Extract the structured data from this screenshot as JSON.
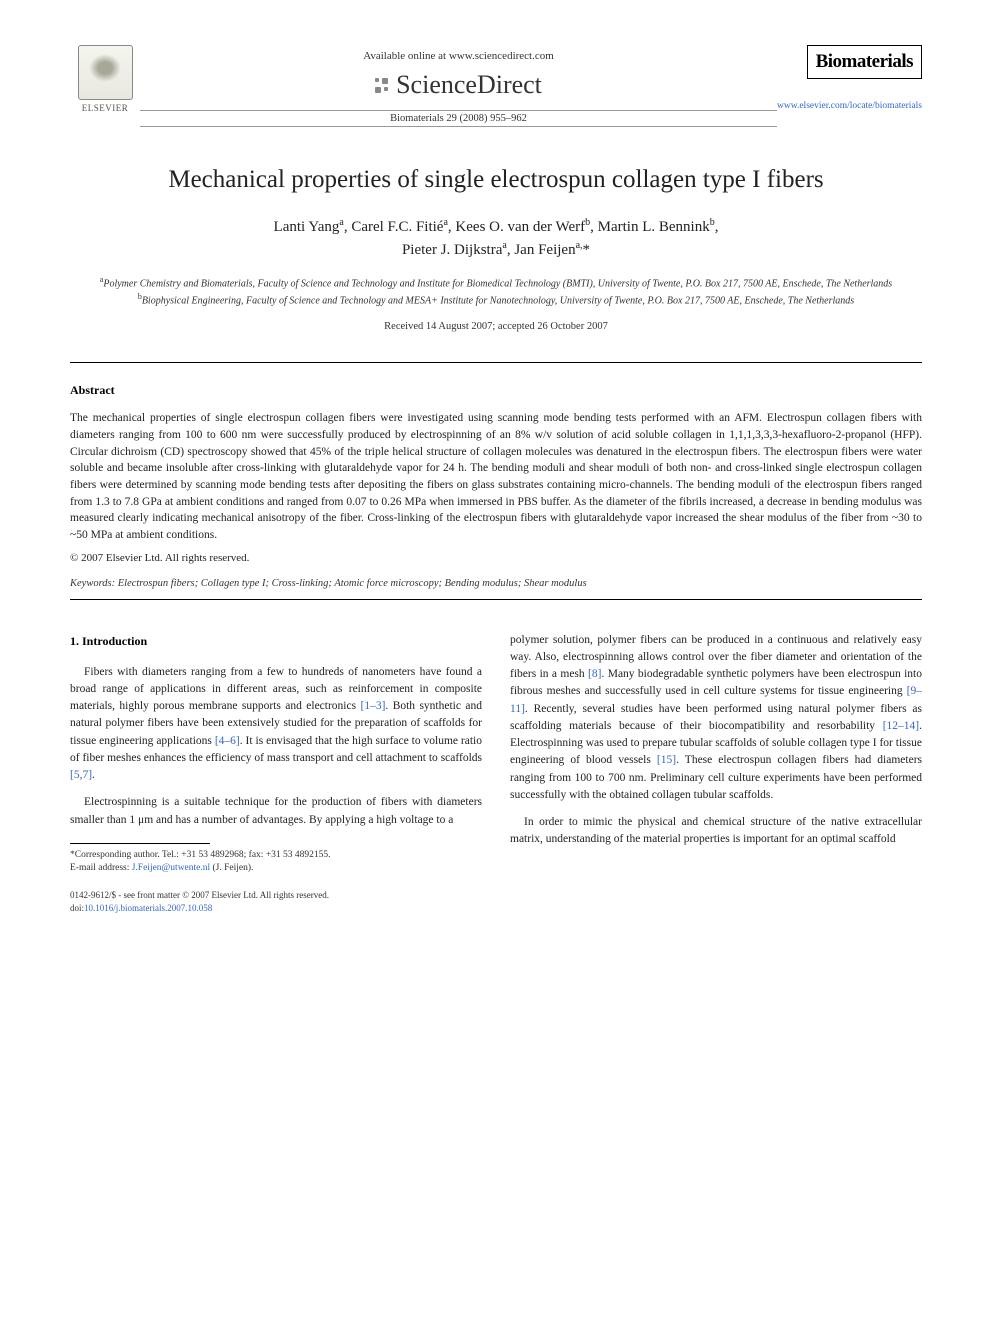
{
  "header": {
    "elsevier_label": "ELSEVIER",
    "available_online": "Available online at www.sciencedirect.com",
    "sciencedirect_label": "ScienceDirect",
    "citation": "Biomaterials 29 (2008) 955–962",
    "journal_name": "Biomaterials",
    "journal_url": "www.elsevier.com/locate/biomaterials"
  },
  "title": "Mechanical properties of single electrospun collagen type I fibers",
  "authors_html": "Lanti Yang<sup>a</sup>, Carel F.C. Fitié<sup>a</sup>, Kees O. van der Werf<sup>b</sup>, Martin L. Bennink<sup>b</sup>, Pieter J. Dijkstra<sup>a</sup>, Jan Feijen<sup>a,*</sup>",
  "authors_plain": "Lanti Yang, Carel F.C. Fitié, Kees O. van der Werf, Martin L. Bennink, Pieter J. Dijkstra, Jan Feijen",
  "affiliations": {
    "a": "Polymer Chemistry and Biomaterials, Faculty of Science and Technology and Institute for Biomedical Technology (BMTI), University of Twente, P.O. Box 217, 7500 AE, Enschede, The Netherlands",
    "b": "Biophysical Engineering, Faculty of Science and Technology and MESA+ Institute for Nanotechnology, University of Twente, P.O. Box 217, 7500 AE, Enschede, The Netherlands"
  },
  "dates": "Received 14 August 2007; accepted 26 October 2007",
  "abstract": {
    "heading": "Abstract",
    "text": "The mechanical properties of single electrospun collagen fibers were investigated using scanning mode bending tests performed with an AFM. Electrospun collagen fibers with diameters ranging from 100 to 600 nm were successfully produced by electrospinning of an 8% w/v solution of acid soluble collagen in 1,1,1,3,3,3-hexafluoro-2-propanol (HFP). Circular dichroism (CD) spectroscopy showed that 45% of the triple helical structure of collagen molecules was denatured in the electrospun fibers. The electrospun fibers were water soluble and became insoluble after cross-linking with glutaraldehyde vapor for 24 h. The bending moduli and shear moduli of both non- and cross-linked single electrospun collagen fibers were determined by scanning mode bending tests after depositing the fibers on glass substrates containing micro-channels. The bending moduli of the electrospun fibers ranged from 1.3 to 7.8 GPa at ambient conditions and ranged from 0.07 to 0.26 MPa when immersed in PBS buffer. As the diameter of the fibrils increased, a decrease in bending modulus was measured clearly indicating mechanical anisotropy of the fiber. Cross-linking of the electrospun fibers with glutaraldehyde vapor increased the shear modulus of the fiber from ~30 to ~50 MPa at ambient conditions.",
    "copyright": "© 2007 Elsevier Ltd. All rights reserved."
  },
  "keywords": {
    "label": "Keywords:",
    "text": "Electrospun fibers; Collagen type I; Cross-linking; Atomic force microscopy; Bending modulus; Shear modulus"
  },
  "section1": {
    "heading": "1. Introduction",
    "col1_para1": "Fibers with diameters ranging from a few to hundreds of nanometers have found a broad range of applications in different areas, such as reinforcement in composite materials, highly porous membrane supports and electronics [1–3]. Both synthetic and natural polymer fibers have been extensively studied for the preparation of scaffolds for tissue engineering applications [4–6]. It is envisaged that the high surface to volume ratio of fiber meshes enhances the efficiency of mass transport and cell attachment to scaffolds [5,7].",
    "col1_para2": "Electrospinning is a suitable technique for the production of fibers with diameters smaller than 1 μm and has a number of advantages. By applying a high voltage to a",
    "col2_para1": "polymer solution, polymer fibers can be produced in a continuous and relatively easy way. Also, electrospinning allows control over the fiber diameter and orientation of the fibers in a mesh [8]. Many biodegradable synthetic polymers have been electrospun into fibrous meshes and successfully used in cell culture systems for tissue engineering [9–11]. Recently, several studies have been performed using natural polymer fibers as scaffolding materials because of their biocompatibility and resorbability [12–14]. Electrospinning was used to prepare tubular scaffolds of soluble collagen type I for tissue engineering of blood vessels [15]. These electrospun collagen fibers had diameters ranging from 100 to 700 nm. Preliminary cell culture experiments have been performed successfully with the obtained collagen tubular scaffolds.",
    "col2_para2": "In order to mimic the physical and chemical structure of the native extracellular matrix, understanding of the material properties is important for an optimal scaffold"
  },
  "footnote": {
    "corresponding": "*Corresponding author. Tel.: +31 53 4892968; fax: +31 53 4892155.",
    "email_label": "E-mail address:",
    "email": "J.Feijen@utwente.nl",
    "email_name": "(J. Feijen)."
  },
  "footer": {
    "line1": "0142-9612/$ - see front matter © 2007 Elsevier Ltd. All rights reserved.",
    "doi_label": "doi:",
    "doi": "10.1016/j.biomaterials.2007.10.058"
  },
  "refs": {
    "r1_3": "[1–3]",
    "r4_6": "[4–6]",
    "r5_7": "[5,7]",
    "r8": "[8]",
    "r9_11": "[9–11]",
    "r12_14": "[12–14]",
    "r15": "[15]"
  },
  "colors": {
    "text": "#222222",
    "link": "#3366cc",
    "border": "#000000",
    "background": "#ffffff"
  },
  "typography": {
    "body_font": "Georgia, Times New Roman, serif",
    "title_size_pt": 19,
    "author_size_pt": 11,
    "body_size_pt": 9,
    "footnote_size_pt": 7.5
  }
}
